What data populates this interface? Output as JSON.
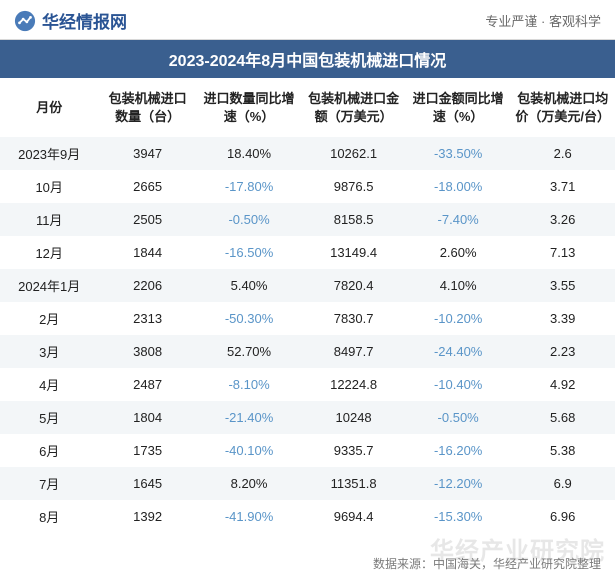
{
  "header": {
    "brand_text": "华经情报网",
    "brand_color": "#2a5494",
    "tagline_left": "专业严谨",
    "tagline_sep": " · ",
    "tagline_right": "客观科学",
    "tagline_color": "#6a6a6a"
  },
  "chart": {
    "type": "table",
    "title": "2023-2024年8月中国包装机械进口情况",
    "title_bg": "#3a5f8f",
    "title_color": "#ffffff",
    "title_fontsize": 16,
    "stripe_color": "#f3f6f8",
    "background_color": "#ffffff",
    "text_color": "#222222",
    "negative_color": "#5a95c8",
    "body_fontsize": 13,
    "header_fontsize": 13,
    "columns": [
      {
        "label": "月份"
      },
      {
        "label": "包装机械进口数量（台）"
      },
      {
        "label": "进口数量同比增速（%）"
      },
      {
        "label": "包装机械进口金额（万美元）"
      },
      {
        "label": "进口金额同比增速（%）"
      },
      {
        "label": "包装机械进口均价（万美元/台）"
      }
    ],
    "rows": [
      {
        "month": "2023年9月",
        "qty": "3947",
        "qty_yoy": "18.40%",
        "qty_yoy_neg": false,
        "amt": "10262.1",
        "amt_yoy": "-33.50%",
        "amt_yoy_neg": true,
        "avg": "2.6"
      },
      {
        "month": "10月",
        "qty": "2665",
        "qty_yoy": "-17.80%",
        "qty_yoy_neg": true,
        "amt": "9876.5",
        "amt_yoy": "-18.00%",
        "amt_yoy_neg": true,
        "avg": "3.71"
      },
      {
        "month": "11月",
        "qty": "2505",
        "qty_yoy": "-0.50%",
        "qty_yoy_neg": true,
        "amt": "8158.5",
        "amt_yoy": "-7.40%",
        "amt_yoy_neg": true,
        "avg": "3.26"
      },
      {
        "month": "12月",
        "qty": "1844",
        "qty_yoy": "-16.50%",
        "qty_yoy_neg": true,
        "amt": "13149.4",
        "amt_yoy": "2.60%",
        "amt_yoy_neg": false,
        "avg": "7.13"
      },
      {
        "month": "2024年1月",
        "qty": "2206",
        "qty_yoy": "5.40%",
        "qty_yoy_neg": false,
        "amt": "7820.4",
        "amt_yoy": "4.10%",
        "amt_yoy_neg": false,
        "avg": "3.55"
      },
      {
        "month": "2月",
        "qty": "2313",
        "qty_yoy": "-50.30%",
        "qty_yoy_neg": true,
        "amt": "7830.7",
        "amt_yoy": "-10.20%",
        "amt_yoy_neg": true,
        "avg": "3.39"
      },
      {
        "month": "3月",
        "qty": "3808",
        "qty_yoy": "52.70%",
        "qty_yoy_neg": false,
        "amt": "8497.7",
        "amt_yoy": "-24.40%",
        "amt_yoy_neg": true,
        "avg": "2.23"
      },
      {
        "month": "4月",
        "qty": "2487",
        "qty_yoy": "-8.10%",
        "qty_yoy_neg": true,
        "amt": "12224.8",
        "amt_yoy": "-10.40%",
        "amt_yoy_neg": true,
        "avg": "4.92"
      },
      {
        "month": "5月",
        "qty": "1804",
        "qty_yoy": "-21.40%",
        "qty_yoy_neg": true,
        "amt": "10248",
        "amt_yoy": "-0.50%",
        "amt_yoy_neg": true,
        "avg": "5.68"
      },
      {
        "month": "6月",
        "qty": "1735",
        "qty_yoy": "-40.10%",
        "qty_yoy_neg": true,
        "amt": "9335.7",
        "amt_yoy": "-16.20%",
        "amt_yoy_neg": true,
        "avg": "5.38"
      },
      {
        "month": "7月",
        "qty": "1645",
        "qty_yoy": "8.20%",
        "qty_yoy_neg": false,
        "amt": "11351.8",
        "amt_yoy": "-12.20%",
        "amt_yoy_neg": true,
        "avg": "6.9"
      },
      {
        "month": "8月",
        "qty": "1392",
        "qty_yoy": "-41.90%",
        "qty_yoy_neg": true,
        "amt": "9694.4",
        "amt_yoy": "-15.30%",
        "amt_yoy_neg": true,
        "avg": "6.96"
      }
    ]
  },
  "footer": {
    "source_label": "数据来源：中国海关，华经产业研究院整理",
    "watermark": "华经产业研究院",
    "source_color": "#7a7a7a",
    "watermark_color": "rgba(120,120,120,0.18)"
  }
}
